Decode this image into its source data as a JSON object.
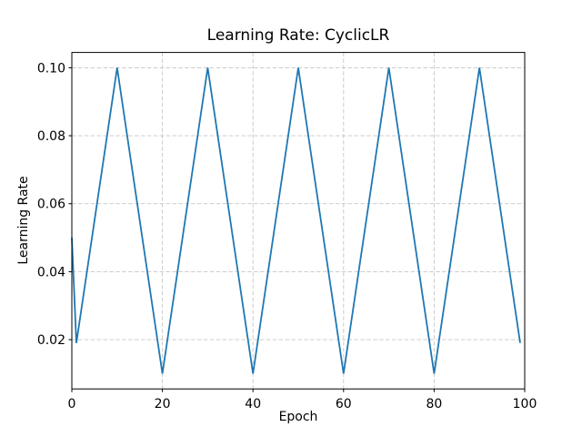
{
  "figure": {
    "background": "#ffffff"
  },
  "chart_data": {
    "type": "line",
    "title": "Learning Rate: CyclicLR",
    "xlabel": "Epoch",
    "ylabel": "Learning Rate",
    "xlim": [
      0,
      100
    ],
    "ylim": [
      0.0055,
      0.1045
    ],
    "xticks": [
      0,
      20,
      40,
      60,
      80,
      100
    ],
    "xtick_labels": [
      "0",
      "20",
      "40",
      "60",
      "80",
      "100"
    ],
    "yticks": [
      0.02,
      0.04,
      0.06,
      0.08,
      0.1
    ],
    "ytick_labels": [
      "0.02",
      "0.04",
      "0.06",
      "0.08",
      "0.10"
    ],
    "grid": true,
    "grid_linestyle": "dashed",
    "grid_color": "#c6c6c6",
    "line_color": "#1f77b4",
    "spine_color": "#000000",
    "legend": "none",
    "schedule_summary": {
      "scheduler": "CyclicLR",
      "base_lr": 0.01,
      "max_lr": 0.1,
      "step_size_up_epochs": 10,
      "period_epochs": 20,
      "peaks_at_epochs": [
        10,
        30,
        50,
        70,
        90
      ],
      "troughs_at_epochs": [
        20,
        40,
        60,
        80
      ]
    },
    "series": [
      {
        "name": "learning_rate",
        "x": {
          "start": 0,
          "step": 1,
          "count": 100
        },
        "y": [
          0.05,
          0.019,
          0.028,
          0.037,
          0.046,
          0.055,
          0.064,
          0.073,
          0.082,
          0.091,
          0.1,
          0.091,
          0.082,
          0.073,
          0.064,
          0.055,
          0.046,
          0.037,
          0.028,
          0.019,
          0.01,
          0.019,
          0.028,
          0.037,
          0.046,
          0.055,
          0.064,
          0.073,
          0.082,
          0.091,
          0.1,
          0.091,
          0.082,
          0.073,
          0.064,
          0.055,
          0.046,
          0.037,
          0.028,
          0.019,
          0.01,
          0.019,
          0.028,
          0.037,
          0.046,
          0.055,
          0.064,
          0.073,
          0.082,
          0.091,
          0.1,
          0.091,
          0.082,
          0.073,
          0.064,
          0.055,
          0.046,
          0.037,
          0.028,
          0.019,
          0.01,
          0.019,
          0.028,
          0.037,
          0.046,
          0.055,
          0.064,
          0.073,
          0.082,
          0.091,
          0.1,
          0.091,
          0.082,
          0.073,
          0.064,
          0.055,
          0.046,
          0.037,
          0.028,
          0.019,
          0.01,
          0.019,
          0.028,
          0.037,
          0.046,
          0.055,
          0.064,
          0.073,
          0.082,
          0.091,
          0.1,
          0.091,
          0.082,
          0.073,
          0.064,
          0.055,
          0.046,
          0.037,
          0.028,
          0.019
        ]
      }
    ]
  }
}
